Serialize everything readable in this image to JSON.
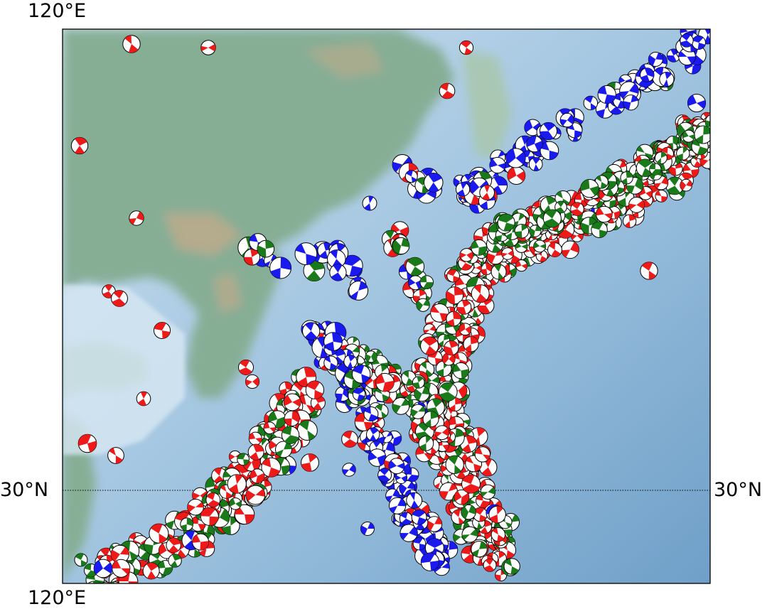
{
  "labels": {
    "top_lon": "120°E",
    "bottom_lon": "120°E",
    "left_lat": "30°N",
    "right_lat": "30°N"
  },
  "legend_colors": {
    "strike_slip": "#1a1aee",
    "thrust": "#ee1a1a",
    "normal": "#1a7a1a",
    "land": "#7fa88f",
    "ocean": "#7aa9cf",
    "shelf": "#cfe2f0"
  }
}
